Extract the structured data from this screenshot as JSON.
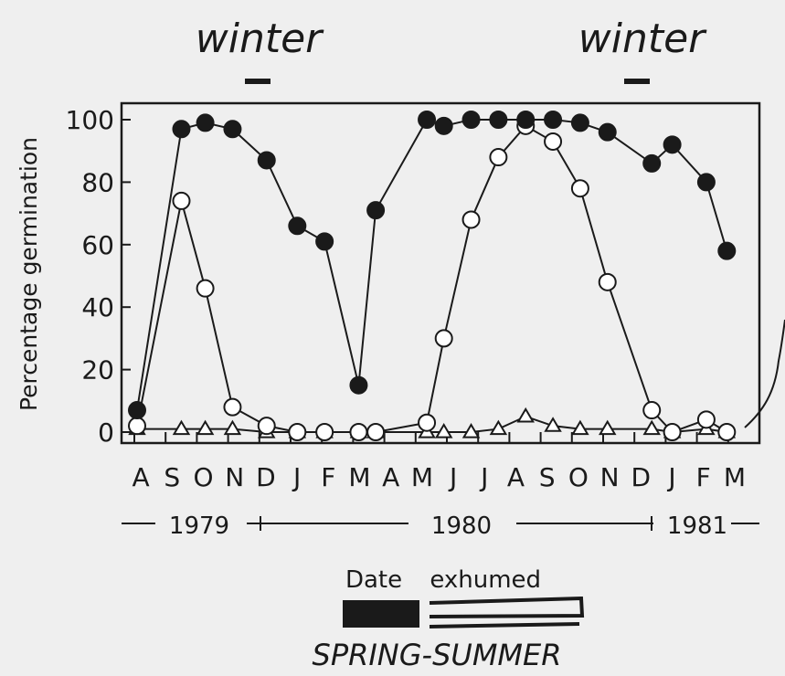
{
  "annotations": {
    "winter_left": "winter",
    "winter_right": "winter",
    "spring_summer": "SPRING-SUMMER"
  },
  "colors": {
    "ink": "#1a1a1a",
    "paper": "#efefef",
    "open_fill": "#ffffff"
  },
  "chart_data": {
    "type": "line",
    "ylabel": "Percentage germination",
    "xlabel": "Date exhumed",
    "ylim": [
      0,
      100
    ],
    "yticks": [
      0,
      20,
      40,
      60,
      80,
      100
    ],
    "month_labels": [
      "A",
      "S",
      "O",
      "N",
      "D",
      "J",
      "F",
      "M",
      "A",
      "M",
      "J",
      "J",
      "A",
      "S",
      "O",
      "N",
      "D",
      "J",
      "F",
      "M"
    ],
    "year_labels": [
      "1979",
      "1980",
      "1981"
    ],
    "grid": false,
    "series": [
      {
        "marker": "filled-circle",
        "points": [
          [
            0.0,
            7
          ],
          [
            1.3,
            97
          ],
          [
            2.0,
            99
          ],
          [
            2.8,
            97
          ],
          [
            3.8,
            87
          ],
          [
            4.7,
            66
          ],
          [
            5.5,
            61
          ],
          [
            6.5,
            15
          ],
          [
            7.0,
            71
          ],
          [
            8.5,
            100
          ],
          [
            9.0,
            98
          ],
          [
            9.8,
            100
          ],
          [
            10.6,
            100
          ],
          [
            11.4,
            100
          ],
          [
            12.2,
            100
          ],
          [
            13.0,
            99
          ],
          [
            13.8,
            96
          ],
          [
            15.1,
            86
          ],
          [
            15.7,
            92
          ],
          [
            16.7,
            80
          ],
          [
            17.3,
            58
          ]
        ]
      },
      {
        "marker": "open-circle",
        "points": [
          [
            0.0,
            2
          ],
          [
            1.3,
            74
          ],
          [
            2.0,
            46
          ],
          [
            2.8,
            8
          ],
          [
            3.8,
            2
          ],
          [
            4.7,
            0
          ],
          [
            5.5,
            0
          ],
          [
            6.5,
            0
          ],
          [
            7.0,
            0
          ],
          [
            8.5,
            3
          ],
          [
            9.0,
            30
          ],
          [
            9.8,
            68
          ],
          [
            10.6,
            88
          ],
          [
            11.4,
            98
          ],
          [
            12.2,
            93
          ],
          [
            13.0,
            78
          ],
          [
            13.8,
            48
          ],
          [
            15.1,
            7
          ],
          [
            15.7,
            0
          ],
          [
            16.7,
            4
          ],
          [
            17.3,
            0
          ]
        ]
      },
      {
        "marker": "open-triangle",
        "points": [
          [
            0.0,
            1
          ],
          [
            1.3,
            1
          ],
          [
            2.0,
            1
          ],
          [
            2.8,
            1
          ],
          [
            3.8,
            0
          ],
          [
            4.7,
            0
          ],
          [
            5.5,
            0
          ],
          [
            6.5,
            0
          ],
          [
            7.0,
            0
          ],
          [
            8.5,
            0
          ],
          [
            9.0,
            0
          ],
          [
            9.8,
            0
          ],
          [
            10.6,
            1
          ],
          [
            11.4,
            5
          ],
          [
            12.2,
            2
          ],
          [
            13.0,
            1
          ],
          [
            13.8,
            1
          ],
          [
            15.1,
            1
          ],
          [
            15.7,
            0
          ],
          [
            16.7,
            1
          ],
          [
            17.3,
            0
          ]
        ]
      }
    ]
  }
}
